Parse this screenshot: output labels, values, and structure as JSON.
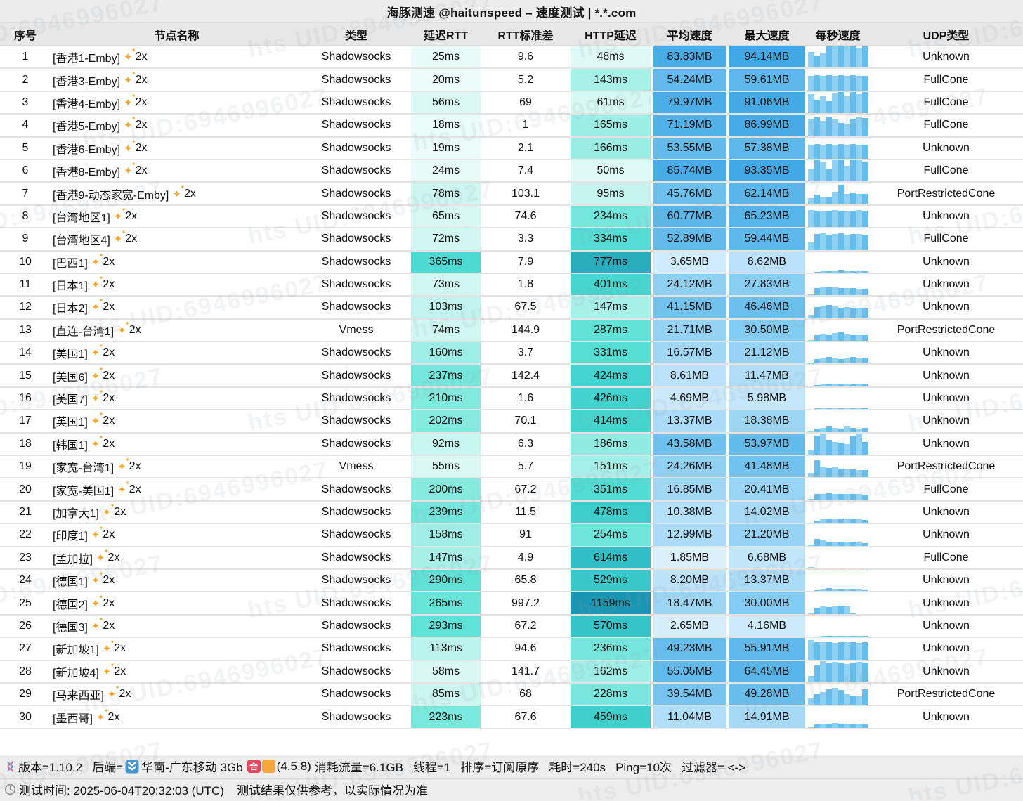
{
  "title": "海豚测速 @haitunspeed – 速度测试 | *.*.com",
  "watermark": "hts  UID:6946996027",
  "columns": [
    "序号",
    "节点名称",
    "类型",
    "延迟RTT",
    "RTT标准差",
    "HTTP延迟",
    "平均速度",
    "最大速度",
    "每秒速度",
    "UDP类型"
  ],
  "icons": {
    "sparkle": "✦"
  },
  "colors": {
    "latency_scale": [
      [
        0,
        "#f2fdfb"
      ],
      [
        50,
        "#ddf9f5"
      ],
      [
        100,
        "#c3f4ee"
      ],
      [
        150,
        "#a5efe7"
      ],
      [
        200,
        "#86eadf"
      ],
      [
        250,
        "#6ee5da"
      ],
      [
        300,
        "#5ce1d6"
      ],
      [
        400,
        "#45d6d0"
      ],
      [
        500,
        "#3bccca"
      ],
      [
        600,
        "#32bfc5"
      ],
      [
        800,
        "#27abbc"
      ],
      [
        1200,
        "#1892b1"
      ]
    ],
    "speed_scale": [
      [
        0,
        "#eaf6fd"
      ],
      [
        3,
        "#d3ecfb"
      ],
      [
        6,
        "#c4e6fa"
      ],
      [
        10,
        "#b4dff8"
      ],
      [
        15,
        "#a5d9f6"
      ],
      [
        22,
        "#94d2f4"
      ],
      [
        30,
        "#83cbf1"
      ],
      [
        42,
        "#70c2ee"
      ],
      [
        55,
        "#60baeb"
      ],
      [
        70,
        "#52b2e9"
      ],
      [
        85,
        "#47ace7"
      ],
      [
        100,
        "#3da6e5"
      ]
    ],
    "bar_light": "#8ed1f3",
    "bar_dark": "#66bdec",
    "sparkle": "#f7a62c",
    "badge_red": "#e5465c",
    "badge_orange": "#f6a63b",
    "backend_icon_blue": "#4596d1"
  },
  "rows": [
    {
      "no": "1",
      "name": "[香港1-Emby]",
      "badge": "2x",
      "type": "Shadowsocks",
      "rtt": "25ms",
      "std": "9.6",
      "http": "48ms",
      "avg": "83.83MB",
      "max": "94.14MB",
      "udp": "Unknown",
      "spark": [
        0.75,
        0.55,
        0.7,
        1,
        1,
        1,
        1,
        1,
        0.95,
        1
      ]
    },
    {
      "no": "2",
      "name": "[香港3-Emby]",
      "badge": "2x",
      "type": "Shadowsocks",
      "rtt": "20ms",
      "std": "5.2",
      "http": "143ms",
      "avg": "54.24MB",
      "max": "59.61MB",
      "udp": "FullCone",
      "spark": [
        0.7,
        0.72,
        0.7,
        0.71,
        0.7,
        0.72,
        0.7,
        0.71,
        0.7,
        0.7
      ]
    },
    {
      "no": "3",
      "name": "[香港4-Emby]",
      "badge": "2x",
      "type": "Shadowsocks",
      "rtt": "56ms",
      "std": "69",
      "http": "61ms",
      "avg": "79.97MB",
      "max": "91.06MB",
      "udp": "FullCone",
      "spark": [
        0.9,
        0.62,
        0.82,
        0.55,
        0.92,
        1,
        0.8,
        1,
        0.9,
        1
      ]
    },
    {
      "no": "4",
      "name": "[香港5-Emby]",
      "badge": "2x",
      "type": "Shadowsocks",
      "rtt": "18ms",
      "std": "1",
      "http": "165ms",
      "avg": "71.19MB",
      "max": "86.99MB",
      "udp": "FullCone",
      "spark": [
        0.8,
        0.92,
        0.72,
        0.9,
        0.8,
        0.62,
        0.55,
        0.8,
        0.9,
        0.85
      ]
    },
    {
      "no": "5",
      "name": "[香港6-Emby]",
      "badge": "2x",
      "type": "Shadowsocks",
      "rtt": "19ms",
      "std": "2.1",
      "http": "166ms",
      "avg": "53.55MB",
      "max": "57.38MB",
      "udp": "Unknown",
      "spark": [
        0.65,
        0.7,
        0.66,
        0.7,
        0.65,
        0.7,
        0.66,
        0.7,
        0.65,
        0.66
      ]
    },
    {
      "no": "6",
      "name": "[香港8-Emby]",
      "badge": "2x",
      "type": "Shadowsocks",
      "rtt": "24ms",
      "std": "7.4",
      "http": "50ms",
      "avg": "85.74MB",
      "max": "93.35MB",
      "udp": "FullCone",
      "spark": [
        0.6,
        1,
        0.9,
        0.62,
        1,
        1,
        0.72,
        1,
        1,
        0.9
      ]
    },
    {
      "no": "7",
      "name": "[香港9-动态家宽-Emby]",
      "badge": "2x",
      "type": "Shadowsocks",
      "rtt": "78ms",
      "std": "103.1",
      "http": "95ms",
      "avg": "45.76MB",
      "max": "62.14MB",
      "udp": "PortRestrictedCone",
      "spark": [
        0.3,
        0.45,
        0.32,
        0.36,
        0.6,
        0.9,
        0.5,
        0.55,
        0.5,
        0.48
      ]
    },
    {
      "no": "8",
      "name": "[台湾地区1]",
      "badge": "2x",
      "type": "Shadowsocks",
      "rtt": "65ms",
      "std": "74.6",
      "http": "234ms",
      "avg": "60.77MB",
      "max": "65.23MB",
      "udp": "Unknown",
      "spark": [
        0.8,
        0.76,
        0.72,
        0.75,
        0.8,
        0.76,
        0.72,
        0.75,
        0.8,
        0.76
      ]
    },
    {
      "no": "9",
      "name": "[台湾地区4]",
      "badge": "2x",
      "type": "Shadowsocks",
      "rtt": "72ms",
      "std": "3.3",
      "http": "334ms",
      "avg": "52.89MB",
      "max": "59.44MB",
      "udp": "FullCone",
      "spark": [
        0.35,
        0.75,
        0.76,
        0.7,
        0.75,
        0.76,
        0.7,
        0.75,
        0.75,
        0.7
      ]
    },
    {
      "no": "10",
      "name": "[巴西1]",
      "badge": "2x",
      "type": "Shadowsocks",
      "rtt": "365ms",
      "std": "7.9",
      "http": "777ms",
      "avg": "3.65MB",
      "max": "8.62MB",
      "udp": "Unknown",
      "spark": [
        0,
        0.02,
        0.05,
        0.06,
        0.1,
        0.12,
        0.1,
        0.08,
        0.06,
        0.05
      ]
    },
    {
      "no": "11",
      "name": "[日本1]",
      "badge": "2x",
      "type": "Shadowsocks",
      "rtt": "73ms",
      "std": "1.8",
      "http": "401ms",
      "avg": "24.12MB",
      "max": "27.83MB",
      "udp": "Unknown",
      "spark": [
        0.03,
        0.35,
        0.4,
        0.38,
        0.36,
        0.35,
        0.34,
        0.33,
        0.32,
        0.3
      ]
    },
    {
      "no": "12",
      "name": "[日本2]",
      "badge": "2x",
      "type": "Shadowsocks",
      "rtt": "103ms",
      "std": "67.5",
      "http": "147ms",
      "avg": "41.15MB",
      "max": "46.46MB",
      "udp": "Unknown",
      "spark": [
        0.12,
        0.52,
        0.56,
        0.62,
        0.56,
        0.5,
        0.53,
        0.5,
        0.48,
        0.45
      ]
    },
    {
      "no": "13",
      "name": "[直连-台湾1]",
      "badge": "2x",
      "type": "Vmess",
      "rtt": "74ms",
      "std": "144.9",
      "http": "287ms",
      "avg": "21.71MB",
      "max": "30.50MB",
      "udp": "PortRestrictedCone",
      "spark": [
        0.05,
        0.26,
        0.3,
        0.28,
        0.35,
        0.42,
        0.3,
        0.28,
        0.26,
        0.25
      ]
    },
    {
      "no": "14",
      "name": "[美国1]",
      "badge": "2x",
      "type": "Shadowsocks",
      "rtt": "160ms",
      "std": "3.7",
      "http": "331ms",
      "avg": "16.57MB",
      "max": "21.12MB",
      "udp": "Unknown",
      "spark": [
        0.02,
        0.2,
        0.25,
        0.3,
        0.28,
        0.22,
        0.26,
        0.3,
        0.29,
        0.28
      ]
    },
    {
      "no": "15",
      "name": "[美国6]",
      "badge": "2x",
      "type": "Shadowsocks",
      "rtt": "237ms",
      "std": "142.4",
      "http": "424ms",
      "avg": "8.61MB",
      "max": "11.47MB",
      "udp": "Unknown",
      "spark": [
        0,
        0.06,
        0.1,
        0.12,
        0.1,
        0.1,
        0.12,
        0.11,
        0.1,
        0.1
      ]
    },
    {
      "no": "16",
      "name": "[美国7]",
      "badge": "2x",
      "type": "Shadowsocks",
      "rtt": "210ms",
      "std": "1.6",
      "http": "426ms",
      "avg": "4.69MB",
      "max": "5.98MB",
      "udp": "Unknown",
      "spark": [
        0,
        0.04,
        0.07,
        0.08,
        0.08,
        0.07,
        0.08,
        0.08,
        0.07,
        0.07
      ]
    },
    {
      "no": "17",
      "name": "[英国1]",
      "badge": "2x",
      "type": "Shadowsocks",
      "rtt": "202ms",
      "std": "70.1",
      "http": "414ms",
      "avg": "13.37MB",
      "max": "18.38MB",
      "udp": "Unknown",
      "spark": [
        0.05,
        0.15,
        0.2,
        0.26,
        0.2,
        0.15,
        0.26,
        0.2,
        0.15,
        0.2
      ]
    },
    {
      "no": "18",
      "name": "[韩国1]",
      "badge": "2x",
      "type": "Shadowsocks",
      "rtt": "92ms",
      "std": "6.3",
      "http": "186ms",
      "avg": "43.58MB",
      "max": "53.97MB",
      "udp": "Unknown",
      "spark": [
        0.2,
        0.9,
        1,
        0.7,
        0.6,
        0.55,
        0.5,
        0.9,
        1,
        0.6
      ]
    },
    {
      "no": "19",
      "name": "[家宽-台湾1]",
      "badge": "2x",
      "type": "Vmess",
      "rtt": "55ms",
      "std": "5.7",
      "http": "151ms",
      "avg": "24.26MB",
      "max": "41.48MB",
      "udp": "PortRestrictedCone",
      "spark": [
        0.2,
        0.8,
        0.5,
        0.45,
        0.5,
        0.4,
        0.38,
        0.36,
        0.35,
        0.33
      ]
    },
    {
      "no": "20",
      "name": "[家宽-美国1]",
      "badge": "2x",
      "type": "Shadowsocks",
      "rtt": "200ms",
      "std": "67.2",
      "http": "351ms",
      "avg": "16.85MB",
      "max": "20.41MB",
      "udp": "FullCone",
      "spark": [
        0.05,
        0.28,
        0.3,
        0.32,
        0.3,
        0.28,
        0.29,
        0.3,
        0.28,
        0.27
      ]
    },
    {
      "no": "21",
      "name": "[加拿大1]",
      "badge": "2x",
      "type": "Shadowsocks",
      "rtt": "239ms",
      "std": "11.5",
      "http": "478ms",
      "avg": "10.38MB",
      "max": "14.02MB",
      "udp": "Unknown",
      "spark": [
        0.02,
        0.12,
        0.18,
        0.2,
        0.22,
        0.2,
        0.18,
        0.17,
        0.16,
        0.15
      ]
    },
    {
      "no": "22",
      "name": "[印度1]",
      "badge": "2x",
      "type": "Shadowsocks",
      "rtt": "158ms",
      "std": "91",
      "http": "254ms",
      "avg": "12.99MB",
      "max": "21.20MB",
      "udp": "Unknown",
      "spark": [
        0.05,
        0.3,
        0.25,
        0.2,
        0.15,
        0.18,
        0.2,
        0.18,
        0.15,
        0.12
      ]
    },
    {
      "no": "23",
      "name": "[孟加拉]",
      "badge": "2x",
      "type": "Shadowsocks",
      "rtt": "147ms",
      "std": "4.9",
      "http": "614ms",
      "avg": "1.85MB",
      "max": "6.68MB",
      "udp": "FullCone",
      "spark": [
        0.06,
        0.02,
        0.02,
        0.03,
        0.02,
        0.02,
        0.03,
        0.02,
        0.02,
        0.02
      ]
    },
    {
      "no": "24",
      "name": "[德国1]",
      "badge": "2x",
      "type": "Shadowsocks",
      "rtt": "290ms",
      "std": "65.8",
      "http": "529ms",
      "avg": "8.20MB",
      "max": "13.37MB",
      "udp": "Unknown",
      "spark": [
        0,
        0.05,
        0.1,
        0.15,
        0.12,
        0.1,
        0.12,
        0.1,
        0.1,
        0.08
      ]
    },
    {
      "no": "25",
      "name": "[德国2]",
      "badge": "2x",
      "type": "Shadowsocks",
      "rtt": "265ms",
      "std": "997.2",
      "http": "1159ms",
      "avg": "18.47MB",
      "max": "30.00MB",
      "udp": "Unknown",
      "spark": [
        0.02,
        0.3,
        0.35,
        0.33,
        0.35,
        0.38,
        0.35,
        0.02,
        0,
        0
      ]
    },
    {
      "no": "26",
      "name": "[德国3]",
      "badge": "2x",
      "type": "Shadowsocks",
      "rtt": "293ms",
      "std": "67.2",
      "http": "570ms",
      "avg": "2.65MB",
      "max": "4.16MB",
      "udp": "Unknown",
      "spark": [
        0,
        0.02,
        0.04,
        0.05,
        0.05,
        0.04,
        0.04,
        0.05,
        0.04,
        0.04
      ]
    },
    {
      "no": "27",
      "name": "[新加坡1]",
      "badge": "2x",
      "type": "Shadowsocks",
      "rtt": "113ms",
      "std": "94.6",
      "http": "236ms",
      "avg": "49.23MB",
      "max": "55.91MB",
      "udp": "Unknown",
      "spark": [
        0.9,
        0.8,
        0.85,
        0.8,
        0.76,
        0.8,
        0.85,
        0.8,
        0.76,
        0.8
      ]
    },
    {
      "no": "28",
      "name": "[新加坡4]",
      "badge": "2x",
      "type": "Shadowsocks",
      "rtt": "58ms",
      "std": "141.7",
      "http": "162ms",
      "avg": "55.05MB",
      "max": "64.45MB",
      "udp": "Unknown",
      "spark": [
        0.3,
        0.8,
        1,
        0.9,
        0.95,
        0.9,
        0.85,
        0.9,
        0.95,
        0.9
      ]
    },
    {
      "no": "29",
      "name": "[马来西亚]",
      "badge": "2x",
      "type": "Shadowsocks",
      "rtt": "85ms",
      "std": "68",
      "http": "228ms",
      "avg": "39.54MB",
      "max": "49.28MB",
      "udp": "PortRestrictedCone",
      "spark": [
        0.3,
        0.5,
        0.6,
        0.75,
        0.8,
        0.7,
        0.5,
        0.45,
        0.4,
        0.75
      ]
    },
    {
      "no": "30",
      "name": "[墨西哥]",
      "badge": "2x",
      "type": "Shadowsocks",
      "rtt": "223ms",
      "std": "67.6",
      "http": "459ms",
      "avg": "11.04MB",
      "max": "14.91MB",
      "udp": "Unknown",
      "spark": [
        0.02,
        0.15,
        0.18,
        0.2,
        0.22,
        0.2,
        0.18,
        0.17,
        0.18,
        0.16
      ]
    }
  ],
  "footer": {
    "version": "版本=1.10.2",
    "backend_label": "后端=",
    "backend_value": "华南-广东移动 3Gb",
    "backend_badge": "合",
    "backend_version": "(4.5.8)",
    "traffic": "消耗流量=6.1GB",
    "threads": "线程=1",
    "sort": "排序=订阅原序",
    "duration": "耗时=240s",
    "ping": "Ping=10次",
    "filter": "过滤器= <->",
    "time": "测试时间: 2025-06-04T20:32:03 (UTC)",
    "note": "测试结果仅供参考，以实际情况为准"
  }
}
